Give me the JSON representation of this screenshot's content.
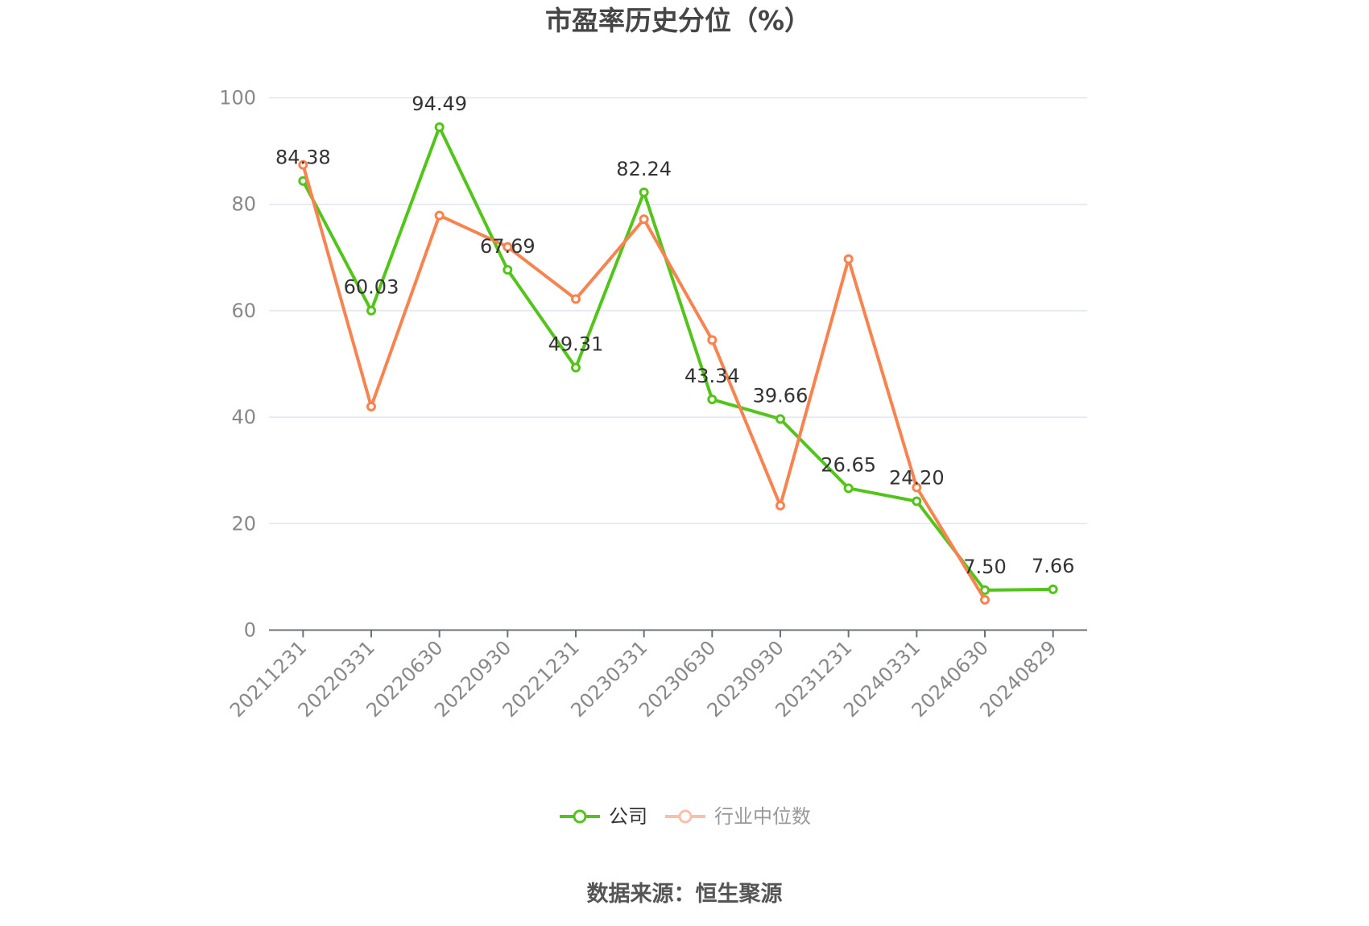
{
  "title": "市盈率历史分位（%）",
  "legend": {
    "items": [
      {
        "label": "公司",
        "icon_color": "#52c41a",
        "text_color": "#333333"
      },
      {
        "label": "行业中位数",
        "icon_color": "#fbbfa8",
        "text_color": "#999999"
      }
    ]
  },
  "source": "数据来源：恒生聚源",
  "colors": {
    "gridline": "#e0e6f1",
    "axis_line": "#6e7079",
    "axis_label": "#888888",
    "data_label": "#333333",
    "title": "#464646"
  },
  "chart_data": {
    "type": "line",
    "title": "市盈率历史分位（%）",
    "xlabel": "",
    "ylabel": "",
    "ylim": [
      0,
      100
    ],
    "yticks": [
      0,
      20,
      40,
      60,
      80,
      100
    ],
    "grid": true,
    "legend_position": "bottom",
    "x_label_rotation": -45,
    "categories": [
      "20211231",
      "20220331",
      "20220630",
      "20220930",
      "20221231",
      "20230331",
      "20230630",
      "20230930",
      "20231231",
      "20240331",
      "20240630",
      "20240829"
    ],
    "series": [
      {
        "name": "公司",
        "color": "#52c41a",
        "values": [
          84.38,
          60.03,
          94.49,
          67.69,
          49.31,
          82.24,
          43.34,
          39.66,
          26.65,
          24.2,
          7.5,
          7.66
        ],
        "labels": [
          "84.38",
          "60.03",
          "94.49",
          "67.69",
          "49.31",
          "82.24",
          "43.34",
          "39.66",
          "26.65",
          "24.20",
          "7.50",
          "7.66"
        ]
      },
      {
        "name": "行业中位数",
        "color": "#f8834f",
        "values": [
          87.4,
          42.0,
          77.9,
          72.0,
          62.2,
          77.2,
          54.5,
          23.4,
          69.7,
          26.8,
          5.7,
          null
        ],
        "labels": []
      }
    ]
  }
}
